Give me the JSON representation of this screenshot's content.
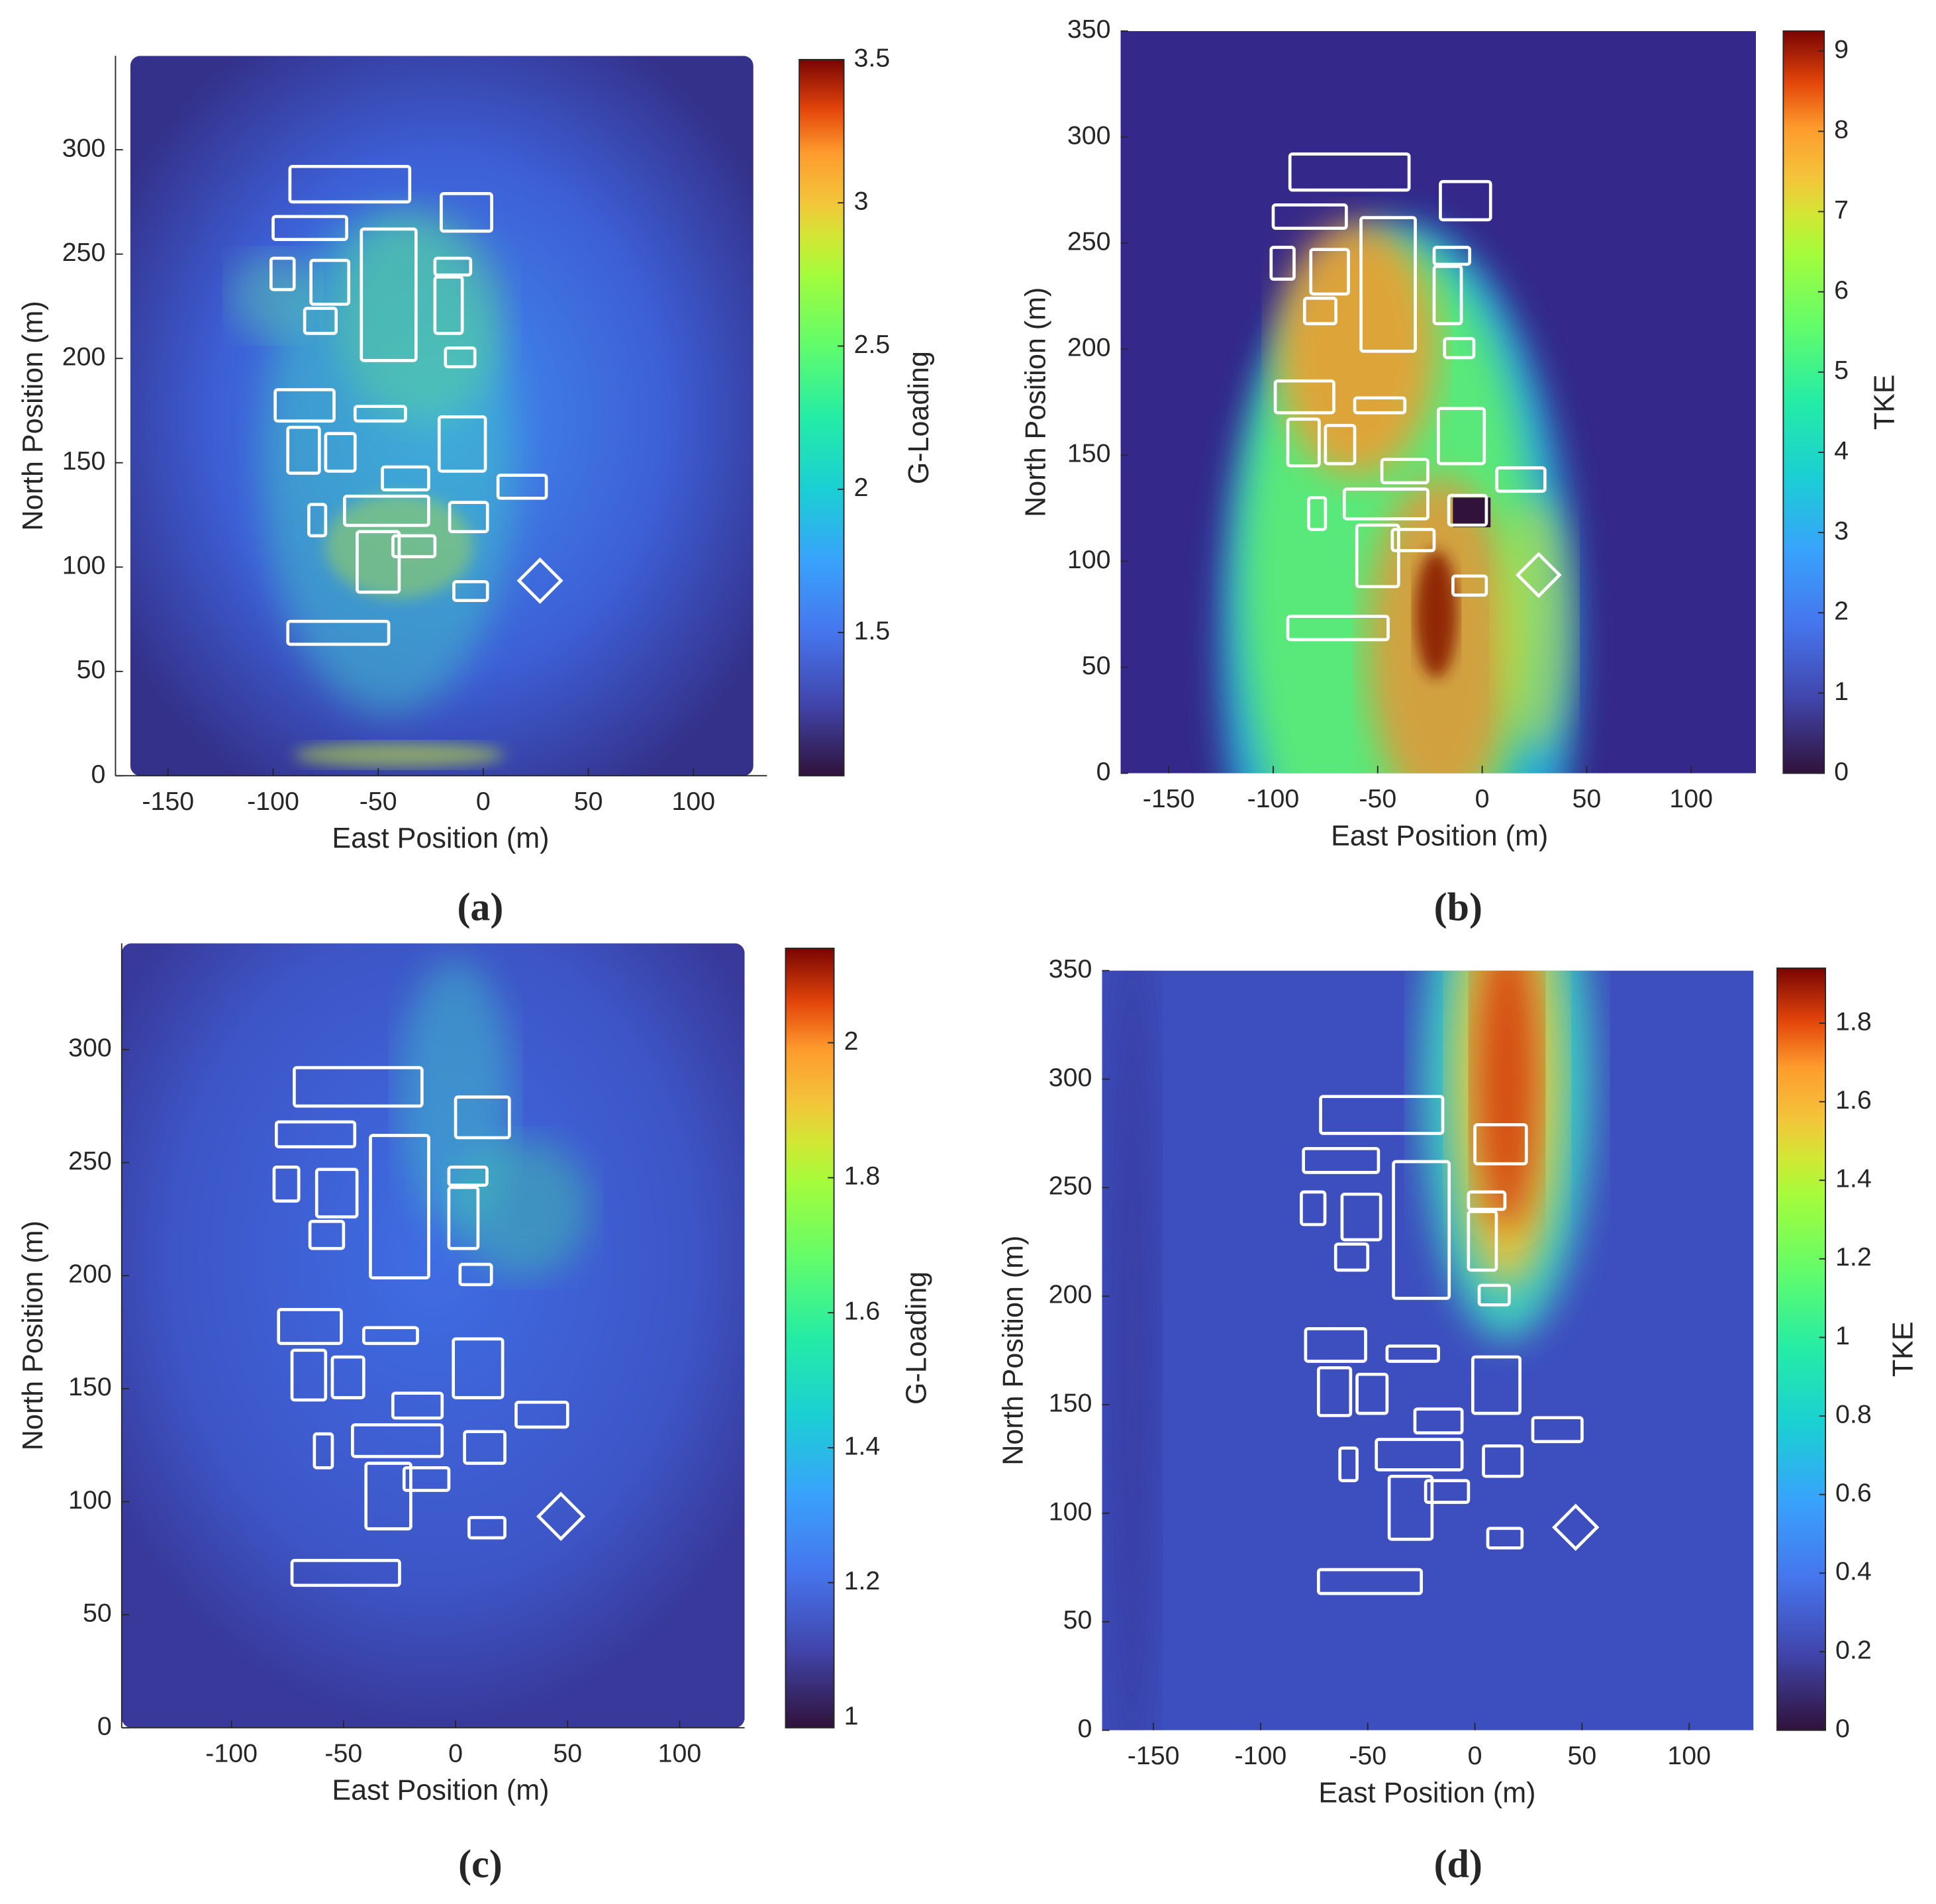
{
  "chart_data": [
    {
      "type": "heatmap",
      "panel_label": "(a)",
      "xlabel": "East Position (m)",
      "ylabel": "North Position (m)",
      "xlim": [
        -175,
        135
      ],
      "ylim": [
        0,
        345
      ],
      "xticks": [
        -150,
        -100,
        -50,
        0,
        50,
        100
      ],
      "yticks": [
        0,
        50,
        100,
        150,
        200,
        250,
        300
      ],
      "colorbar": {
        "label": "G-Loading",
        "lim": [
          1,
          3.5
        ],
        "ticks": [
          1.5,
          2,
          2.5,
          3,
          3.5
        ]
      }
    },
    {
      "type": "heatmap",
      "panel_label": "(b)",
      "xlabel": "East Position (m)",
      "ylabel": "North Position (m)",
      "xlim": [
        -173,
        131
      ],
      "ylim": [
        0,
        350
      ],
      "xticks": [
        -150,
        -100,
        -50,
        0,
        50,
        100
      ],
      "yticks": [
        0,
        50,
        100,
        150,
        200,
        250,
        300,
        350
      ],
      "colorbar": {
        "label": "TKE",
        "lim": [
          0,
          9.25
        ],
        "ticks": [
          0,
          1,
          2,
          3,
          4,
          5,
          6,
          7,
          8,
          9
        ]
      }
    },
    {
      "type": "heatmap",
      "panel_label": "(c)",
      "xlabel": "East Position (m)",
      "ylabel": "North Position (m)",
      "xlim": [
        -149,
        129
      ],
      "ylim": [
        0,
        347
      ],
      "xticks": [
        -100,
        -50,
        0,
        50,
        100
      ],
      "yticks": [
        0,
        50,
        100,
        150,
        200,
        250,
        300
      ],
      "colorbar": {
        "label": "G-Loading",
        "lim": [
          0.985,
          2.14
        ],
        "ticks": [
          1,
          1.2,
          1.4,
          1.6,
          1.8,
          2
        ]
      }
    },
    {
      "type": "heatmap",
      "panel_label": "(d)",
      "xlabel": "East Position (m)",
      "ylabel": "North Position (m)",
      "xlim": [
        -174,
        130
      ],
      "ylim": [
        0,
        350
      ],
      "xticks": [
        -150,
        -100,
        -50,
        0,
        50,
        100
      ],
      "yticks": [
        0,
        50,
        100,
        150,
        200,
        250,
        300,
        350
      ],
      "colorbar": {
        "label": "TKE",
        "lim": [
          0,
          1.94
        ],
        "ticks": [
          0,
          0.2,
          0.4,
          0.6,
          0.8,
          1,
          1.2,
          1.4,
          1.6,
          1.8
        ]
      }
    }
  ]
}
